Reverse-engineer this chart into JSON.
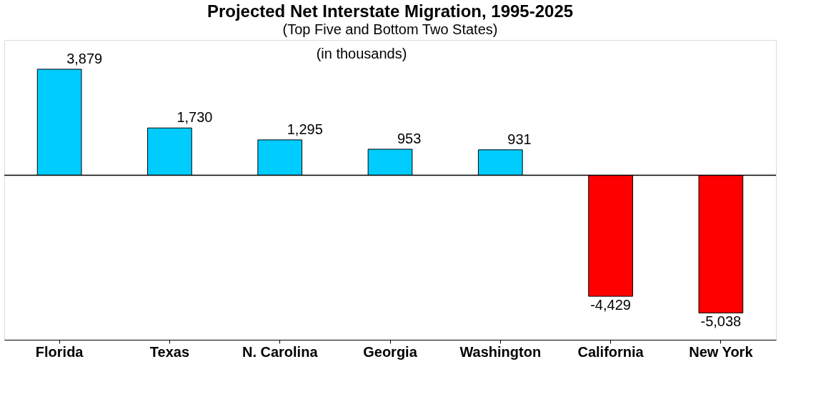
{
  "chart_data": {
    "type": "bar",
    "title": "Projected Net Interstate Migration, 1995-2025",
    "subtitle": "(Top Five and Bottom Two States)",
    "annotations": [
      "(in thousands)"
    ],
    "categories": [
      "Florida",
      "Texas",
      "N. Carolina",
      "Georgia",
      "Washington",
      "California",
      "New York"
    ],
    "values": [
      3879,
      1730,
      1295,
      953,
      931,
      -4429,
      -5038
    ],
    "colors": [
      "#00ccff",
      "#00ccff",
      "#00ccff",
      "#00ccff",
      "#00ccff",
      "#ff0000",
      "#ff0000"
    ],
    "value_labels": [
      "3,879",
      "1,730",
      "1,295",
      "953",
      "931",
      "-4,429",
      "-5,038"
    ],
    "grid": false
  }
}
